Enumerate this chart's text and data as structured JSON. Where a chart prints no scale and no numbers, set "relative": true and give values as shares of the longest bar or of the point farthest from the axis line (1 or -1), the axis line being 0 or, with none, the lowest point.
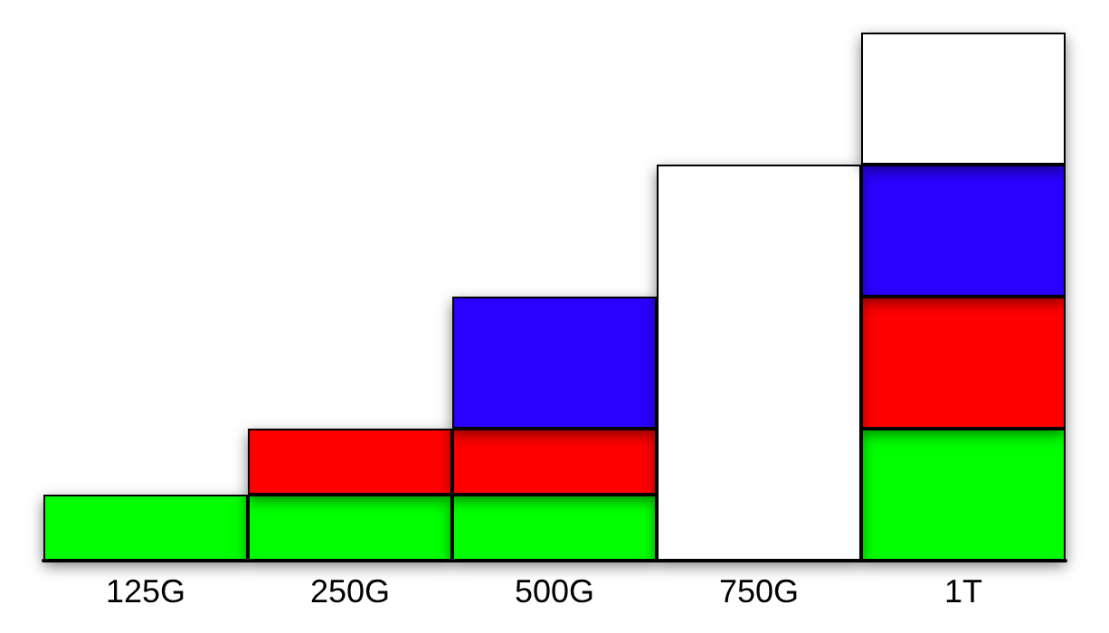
{
  "chart_data": {
    "type": "bar",
    "relative": true,
    "stacked": true,
    "categories": [
      "125G",
      "250G",
      "500G",
      "750G",
      "1T"
    ],
    "series": [
      {
        "color": "#00ff00",
        "values": [
          0.125,
          0.125,
          0.125,
          null,
          0.25
        ]
      },
      {
        "color": "#ff0000",
        "values": [
          null,
          0.125,
          0.125,
          null,
          0.25
        ]
      },
      {
        "color": "#2a00ff",
        "values": [
          null,
          null,
          0.25,
          null,
          0.25
        ]
      },
      {
        "color": "#ffffff",
        "values": [
          null,
          null,
          null,
          0.75,
          0.25
        ]
      }
    ]
  }
}
